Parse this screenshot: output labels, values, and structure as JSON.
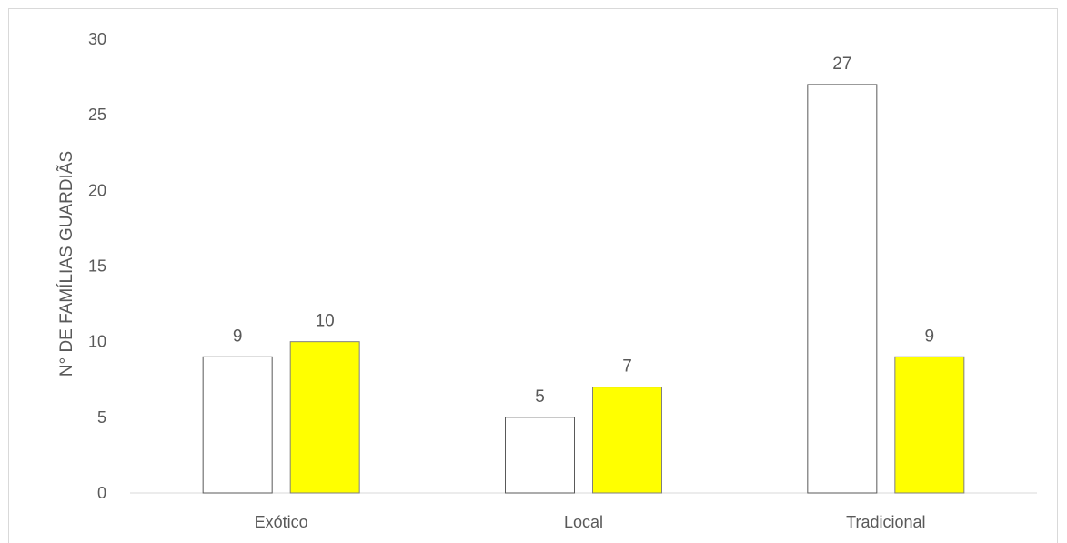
{
  "chart_data": {
    "type": "bar",
    "categories": [
      "Exótico",
      "Local",
      "Tradicional"
    ],
    "series": [
      {
        "values": [
          9,
          5,
          27
        ],
        "color": "#ffffff",
        "stroke": "#595959"
      },
      {
        "values": [
          10,
          7,
          9
        ],
        "color": "#ffff00",
        "stroke": "#7f7f7f"
      }
    ],
    "title": "",
    "xlabel": "",
    "ylabel": "N° DE FAMÍLIAS GUARDIÃS",
    "ylim": [
      0,
      30
    ],
    "yticks": [
      "0",
      "5",
      "10",
      "15",
      "20",
      "25",
      "30"
    ],
    "data_labels": true,
    "grid": false,
    "legend": "none"
  }
}
